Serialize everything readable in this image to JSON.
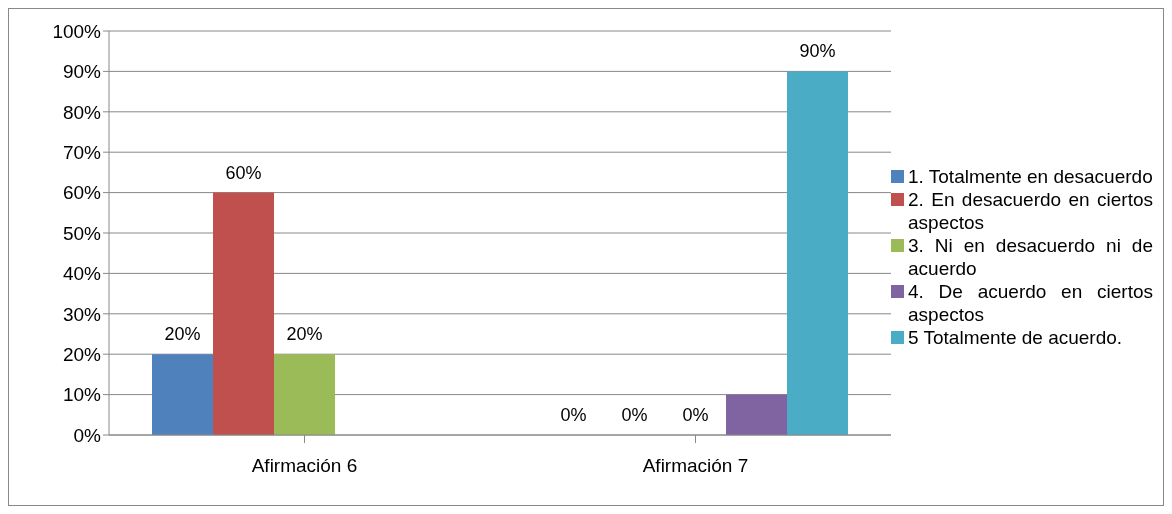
{
  "chart_data": {
    "type": "bar",
    "categories": [
      "Afirmación 6",
      "Afirmación 7"
    ],
    "series": [
      {
        "name": "1.      Totalmente      en desacuerdo",
        "color": "#4f81bd",
        "values": [
          20,
          0
        ],
        "value_labels": [
          "20%",
          "0%"
        ]
      },
      {
        "name": "2.  En  desacuerdo  en ciertos aspectos",
        "color": "#c0504d",
        "values": [
          60,
          0
        ],
        "value_labels": [
          "60%",
          "0%"
        ]
      },
      {
        "name": "3. Ni en desacuerdo ni de acuerdo",
        "color": "#9bbb59",
        "values": [
          20,
          0
        ],
        "value_labels": [
          "20%",
          "0%"
        ]
      },
      {
        "name": "4. De acuerdo en ciertos aspectos",
        "color": "#8064a2",
        "values": [
          null,
          10
        ],
        "value_labels": [
          null,
          null
        ]
      },
      {
        "name": "5       Totalmente       de acuerdo.",
        "color": "#4bacc6",
        "values": [
          null,
          90
        ],
        "value_labels": [
          null,
          "90%"
        ]
      }
    ],
    "ylim": [
      0,
      100
    ],
    "yticks": [
      {
        "value": 0,
        "label": "0%"
      },
      {
        "value": 10,
        "label": "10%"
      },
      {
        "value": 20,
        "label": "20%"
      },
      {
        "value": 30,
        "label": "30%"
      },
      {
        "value": 40,
        "label": "40%"
      },
      {
        "value": 50,
        "label": "50%"
      },
      {
        "value": 60,
        "label": "60%"
      },
      {
        "value": 70,
        "label": "70%"
      },
      {
        "value": 80,
        "label": "80%"
      },
      {
        "value": 90,
        "label": "90%"
      },
      {
        "value": 100,
        "label": "100%"
      }
    ],
    "grid": "y",
    "legend": "right"
  }
}
